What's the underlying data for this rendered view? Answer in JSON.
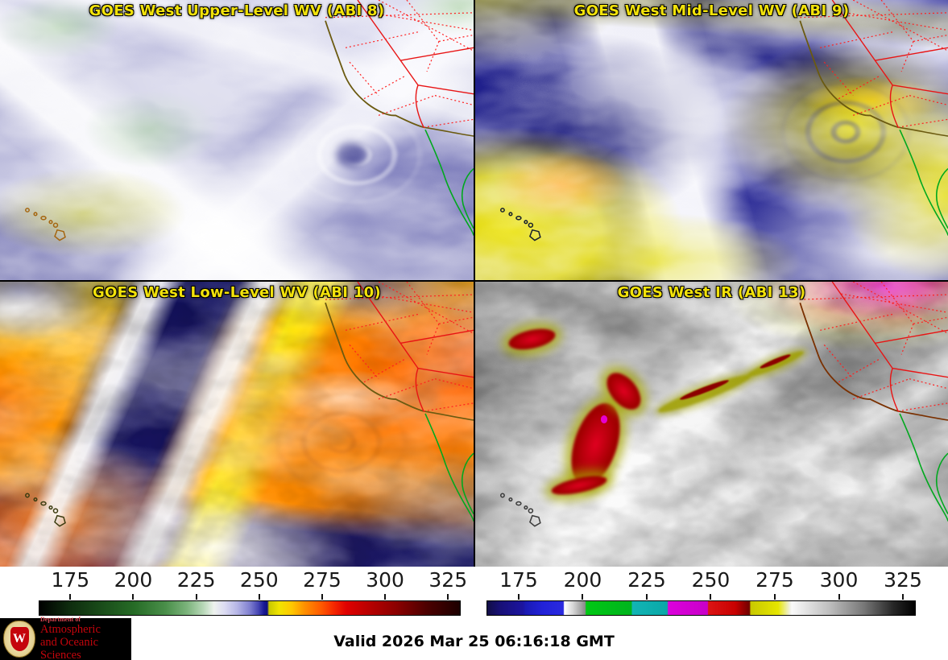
{
  "panels": [
    {
      "title": "GOES West Upper-Level WV (ABI 8)"
    },
    {
      "title": "GOES West Mid-Level WV (ABI 9)"
    },
    {
      "title": "GOES West Low-Level WV (ABI 10)"
    },
    {
      "title": "GOES West IR (ABI 13)"
    }
  ],
  "title_color": "#f2e20a",
  "colorbar_left": {
    "ticks": [
      "175",
      "200",
      "225",
      "250",
      "275",
      "300",
      "325"
    ],
    "stops": [
      {
        "p": 0,
        "c": "#000000"
      },
      {
        "p": 4,
        "c": "#081908"
      },
      {
        "p": 7.5,
        "c": "#0f2e0f"
      },
      {
        "p": 15,
        "c": "#1a4d1a"
      },
      {
        "p": 22.4,
        "c": "#266b26"
      },
      {
        "p": 30,
        "c": "#4a8f4a"
      },
      {
        "p": 35,
        "c": "#7ab27a"
      },
      {
        "p": 39,
        "c": "#b8d8b8"
      },
      {
        "p": 41.5,
        "c": "#eef2ee"
      },
      {
        "p": 44,
        "c": "#dcdcf2"
      },
      {
        "p": 47,
        "c": "#b6b6e6"
      },
      {
        "p": 50,
        "c": "#8080d0"
      },
      {
        "p": 52,
        "c": "#4848b4"
      },
      {
        "p": 53.4,
        "c": "#181894"
      },
      {
        "p": 54.2,
        "c": "#10107e"
      },
      {
        "p": 54.6,
        "c": "#c8c800"
      },
      {
        "p": 57,
        "c": "#f0e400"
      },
      {
        "p": 60,
        "c": "#ffc800"
      },
      {
        "p": 63,
        "c": "#ff9100"
      },
      {
        "p": 67,
        "c": "#ff5a00"
      },
      {
        "p": 70,
        "c": "#f52800"
      },
      {
        "p": 73,
        "c": "#e00000"
      },
      {
        "p": 79,
        "c": "#b40000"
      },
      {
        "p": 85,
        "c": "#8a0000"
      },
      {
        "p": 92,
        "c": "#4d0000"
      },
      {
        "p": 100,
        "c": "#1c0000"
      }
    ]
  },
  "colorbar_right": {
    "ticks": [
      "175",
      "200",
      "225",
      "250",
      "275",
      "300",
      "325"
    ],
    "stops": [
      {
        "p": 0,
        "c": "#120e46"
      },
      {
        "p": 3,
        "c": "#181076"
      },
      {
        "p": 8.4,
        "c": "#1c14a0"
      },
      {
        "p": 9,
        "c": "#1a1ab4"
      },
      {
        "p": 13,
        "c": "#2222d8"
      },
      {
        "p": 17.8,
        "c": "#2a2ae0"
      },
      {
        "p": 18,
        "c": "#ffffff"
      },
      {
        "p": 20,
        "c": "#d8d8d8"
      },
      {
        "p": 22.9,
        "c": "#8a8a8a"
      },
      {
        "p": 23.1,
        "c": "#00c814"
      },
      {
        "p": 33.7,
        "c": "#00b41e"
      },
      {
        "p": 33.9,
        "c": "#12b4b4"
      },
      {
        "p": 42.1,
        "c": "#0aa8a8"
      },
      {
        "p": 42.3,
        "c": "#dc00dc"
      },
      {
        "p": 51.5,
        "c": "#c800c8"
      },
      {
        "p": 51.7,
        "c": "#dc1414"
      },
      {
        "p": 58,
        "c": "#c80000"
      },
      {
        "p": 61.3,
        "c": "#700000"
      },
      {
        "p": 61.6,
        "c": "#c8c800"
      },
      {
        "p": 68,
        "c": "#e6e600"
      },
      {
        "p": 70.8,
        "c": "#f0f0e6"
      },
      {
        "p": 71.2,
        "c": "#fafafa"
      },
      {
        "p": 80,
        "c": "#bebebe"
      },
      {
        "p": 88,
        "c": "#787878"
      },
      {
        "p": 95,
        "c": "#262626"
      },
      {
        "p": 100,
        "c": "#000000"
      }
    ]
  },
  "footer": {
    "valid": "Valid 2026 Mar 25 06:16:18 GMT"
  },
  "logo": {
    "dept_line": "Department of",
    "name_line1": "Atmospheric",
    "name_line2": "and Oceanic Sciences",
    "monogram": "W"
  },
  "map_colors": {
    "state_border": "#e81414",
    "county_border": "#ff2020",
    "us_coast": "#6b5a10",
    "mexico_coast": "#00a81e"
  }
}
